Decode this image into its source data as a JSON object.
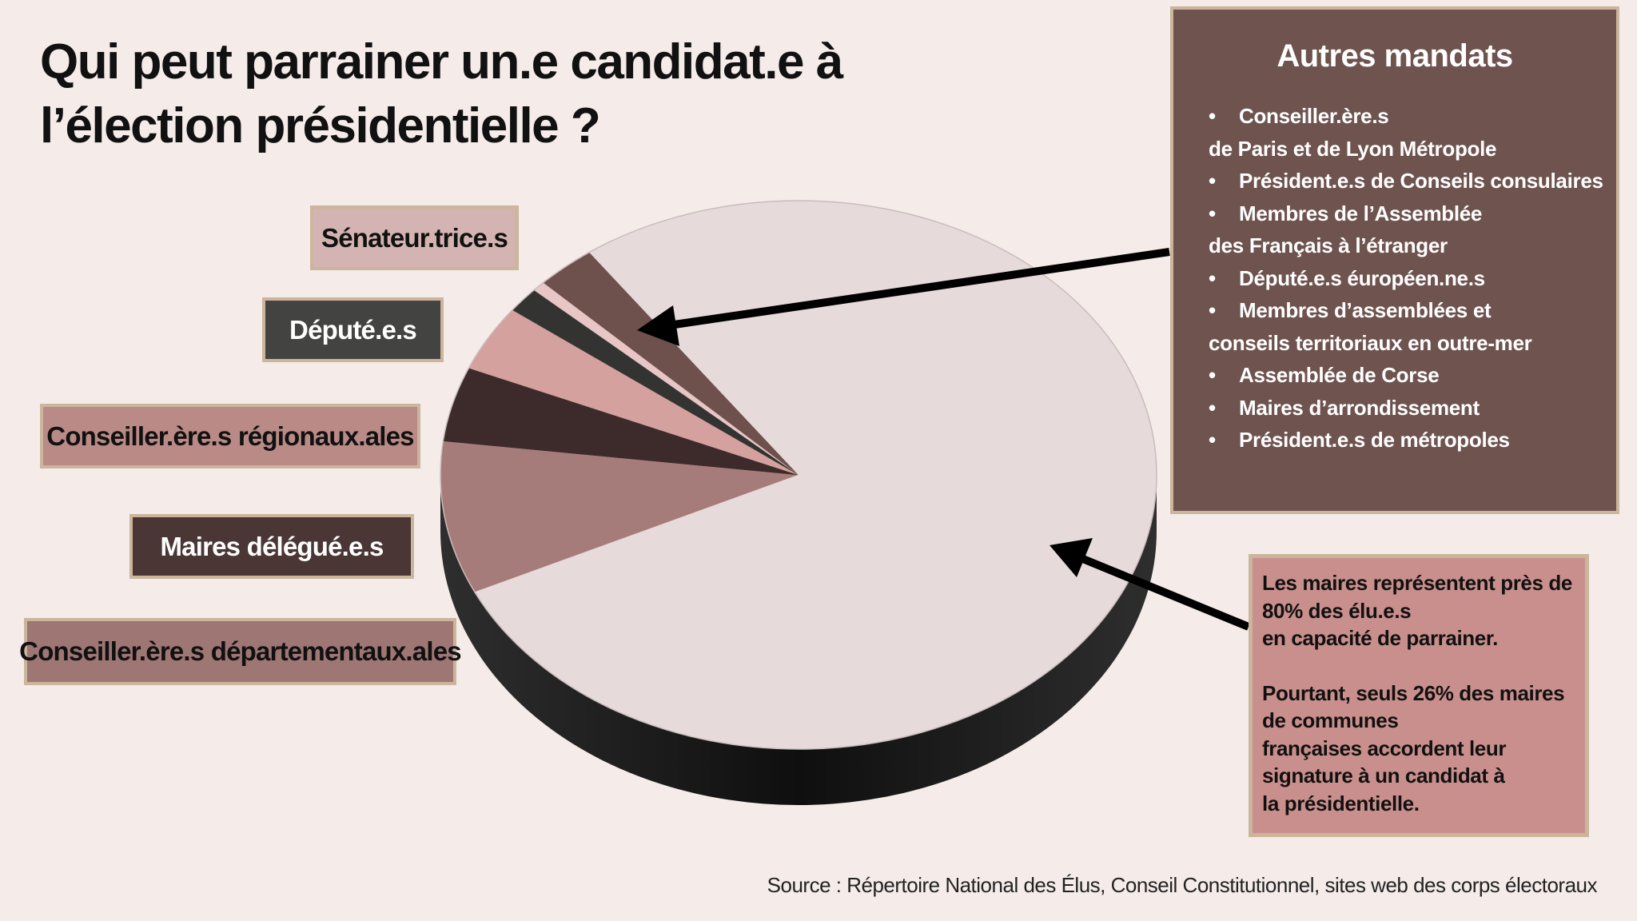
{
  "title": "Qui peut parrainer un.e candidat.e à l’élection présidentielle ?",
  "chart_data": {
    "type": "pie",
    "style": "3d",
    "title": "Qui peut parrainer un.e candidat.e à l’élection présidentielle ?",
    "slices": [
      {
        "label": "Conseiller.ère.s départementaux.ales",
        "value": 9.0,
        "color": "#a67c7a"
      },
      {
        "label": "Maires délégué.e.s",
        "value": 4.4,
        "color": "#3d2b2b"
      },
      {
        "label": "Conseiller.ère.s régionaux.ales",
        "value": 3.9,
        "color": "#d4a19e"
      },
      {
        "label": "Député.e.s",
        "value": 1.5,
        "color": "#333432"
      },
      {
        "label": "Sénateur.trice.s",
        "value": 0.6,
        "color": "#e8c6c6"
      },
      {
        "label": "Autres mandats",
        "value": 2.7,
        "color": "#6e514d"
      },
      {
        "label": "Maires",
        "value": 77.9,
        "color": "#e7dada"
      }
    ]
  },
  "labels": {
    "senateurs": {
      "text": "Sénateur.trice.s",
      "bg": "#d4b4b2",
      "fg": "#111111"
    },
    "deputes": {
      "text": "Député.e.s",
      "bg": "#434341",
      "fg": "#ffffff"
    },
    "regionaux": {
      "text": "Conseiller.ère.s régionaux.ales",
      "bg": "#b98a86",
      "fg": "#111111"
    },
    "maires_delegues": {
      "text": "Maires délégué.e.s",
      "bg": "#4a3635",
      "fg": "#ffffff"
    },
    "departementaux": {
      "text": "Conseiller.ère.s départementaux.ales",
      "bg": "#9e7674",
      "fg": "#111111"
    }
  },
  "autres_mandats": {
    "title": "Autres mandats",
    "items": [
      {
        "bullet": "•",
        "text": "Conseiller.ère.s"
      },
      {
        "bullet": "",
        "text": "de Paris et de Lyon Métropole"
      },
      {
        "bullet": "•",
        "text": "Président.e.s de Conseils consulaires"
      },
      {
        "bullet": "•",
        "text": "Membres de l’Assemblée"
      },
      {
        "bullet": "",
        "text": "des Français à l’étranger"
      },
      {
        "bullet": "•",
        "text": "Député.e.s éuropéen.ne.s"
      },
      {
        "bullet": "•",
        "text": "Membres d’assemblées et"
      },
      {
        "bullet": "",
        "text": "conseils territoriaux en outre-mer"
      },
      {
        "bullet": "•",
        "text": "Assemblée de Corse"
      },
      {
        "bullet": "•",
        "text": "Maires d’arrondissement"
      },
      {
        "bullet": "•",
        "text": "Président.e.s de métropoles"
      }
    ]
  },
  "note": {
    "p1": "Les maires représentent près de\n80% des élu.e.s\nen capacité de parrainer.",
    "p2": "Pourtant, seuls 26% des maires\nde communes\nfrançaises accordent leur\nsignature à un candidat à\nla présidentielle."
  },
  "source": "Source : Répertoire National des Élus, Conseil Constitutionnel, sites web des corps électoraux"
}
